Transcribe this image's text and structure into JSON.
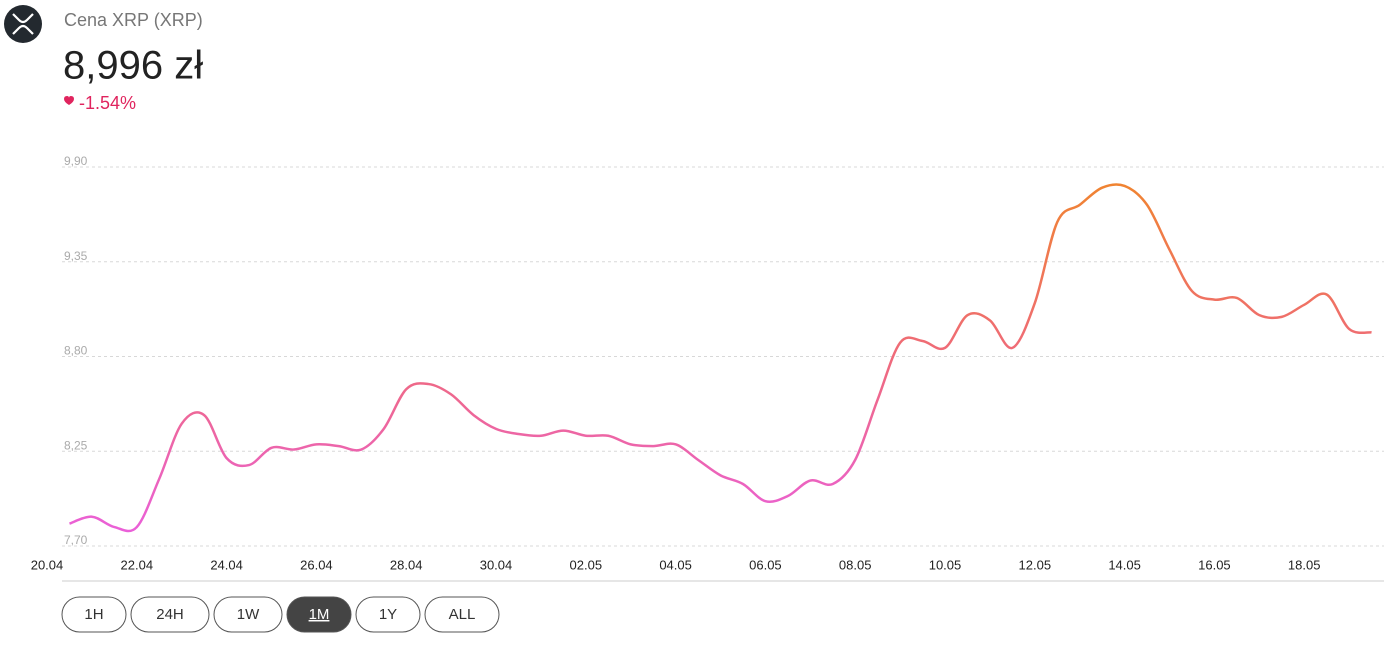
{
  "header": {
    "title": "Cena XRP (XRP)",
    "price": "8,996 zł",
    "change": "-1.54%",
    "change_color": "#e0245e"
  },
  "chart_data": {
    "type": "line",
    "categories": [
      "20.04",
      null,
      null,
      null,
      "22.04",
      null,
      null,
      null,
      "24.04",
      null,
      null,
      null,
      "26.04",
      null,
      null,
      null,
      "28.04",
      null,
      null,
      null,
      "30.04",
      null,
      null,
      null,
      "02.05",
      null,
      null,
      null,
      "04.05",
      null,
      null,
      null,
      "06.05",
      null,
      null,
      null,
      "08.05",
      null,
      null,
      null,
      "10.05",
      null,
      null,
      null,
      "12.05",
      null,
      null,
      null,
      "14.05",
      null,
      null,
      null,
      "16.05",
      null,
      null,
      null,
      "18.05",
      null,
      null,
      null
    ],
    "series": [
      {
        "colors": [
          "#ea5fe0",
          "#ef6a7a",
          "#f0862a"
        ],
        "values": [
          null,
          7.83,
          7.87,
          7.81,
          7.81,
          8.09,
          8.41,
          8.46,
          8.21,
          8.17,
          8.27,
          8.26,
          8.29,
          8.28,
          8.26,
          8.38,
          8.61,
          8.64,
          8.58,
          8.46,
          8.38,
          8.35,
          8.34,
          8.37,
          8.34,
          8.34,
          8.29,
          8.28,
          8.29,
          8.2,
          8.11,
          8.06,
          7.96,
          7.99,
          8.08,
          8.06,
          8.2,
          8.55,
          8.88,
          8.89,
          8.85,
          9.04,
          9.01,
          8.85,
          9.11,
          9.58,
          9.68,
          9.78,
          9.79,
          9.68,
          9.42,
          9.18,
          9.13,
          9.14,
          9.04,
          9.03,
          9.1,
          9.16,
          8.96,
          8.94
        ]
      }
    ],
    "ylim": [
      7.7,
      9.9
    ],
    "yticks": [
      {
        "value": 7.7,
        "label": "7,70"
      },
      {
        "value": 8.25,
        "label": "8,25"
      },
      {
        "value": 8.8,
        "label": "8,80"
      },
      {
        "value": 9.35,
        "label": "9,35"
      },
      {
        "value": 9.9,
        "label": "9,90"
      }
    ],
    "grid": true
  },
  "range_buttons": {
    "options": [
      "1H",
      "24H",
      "1W",
      "1M",
      "1Y",
      "ALL"
    ],
    "selected": 3
  }
}
